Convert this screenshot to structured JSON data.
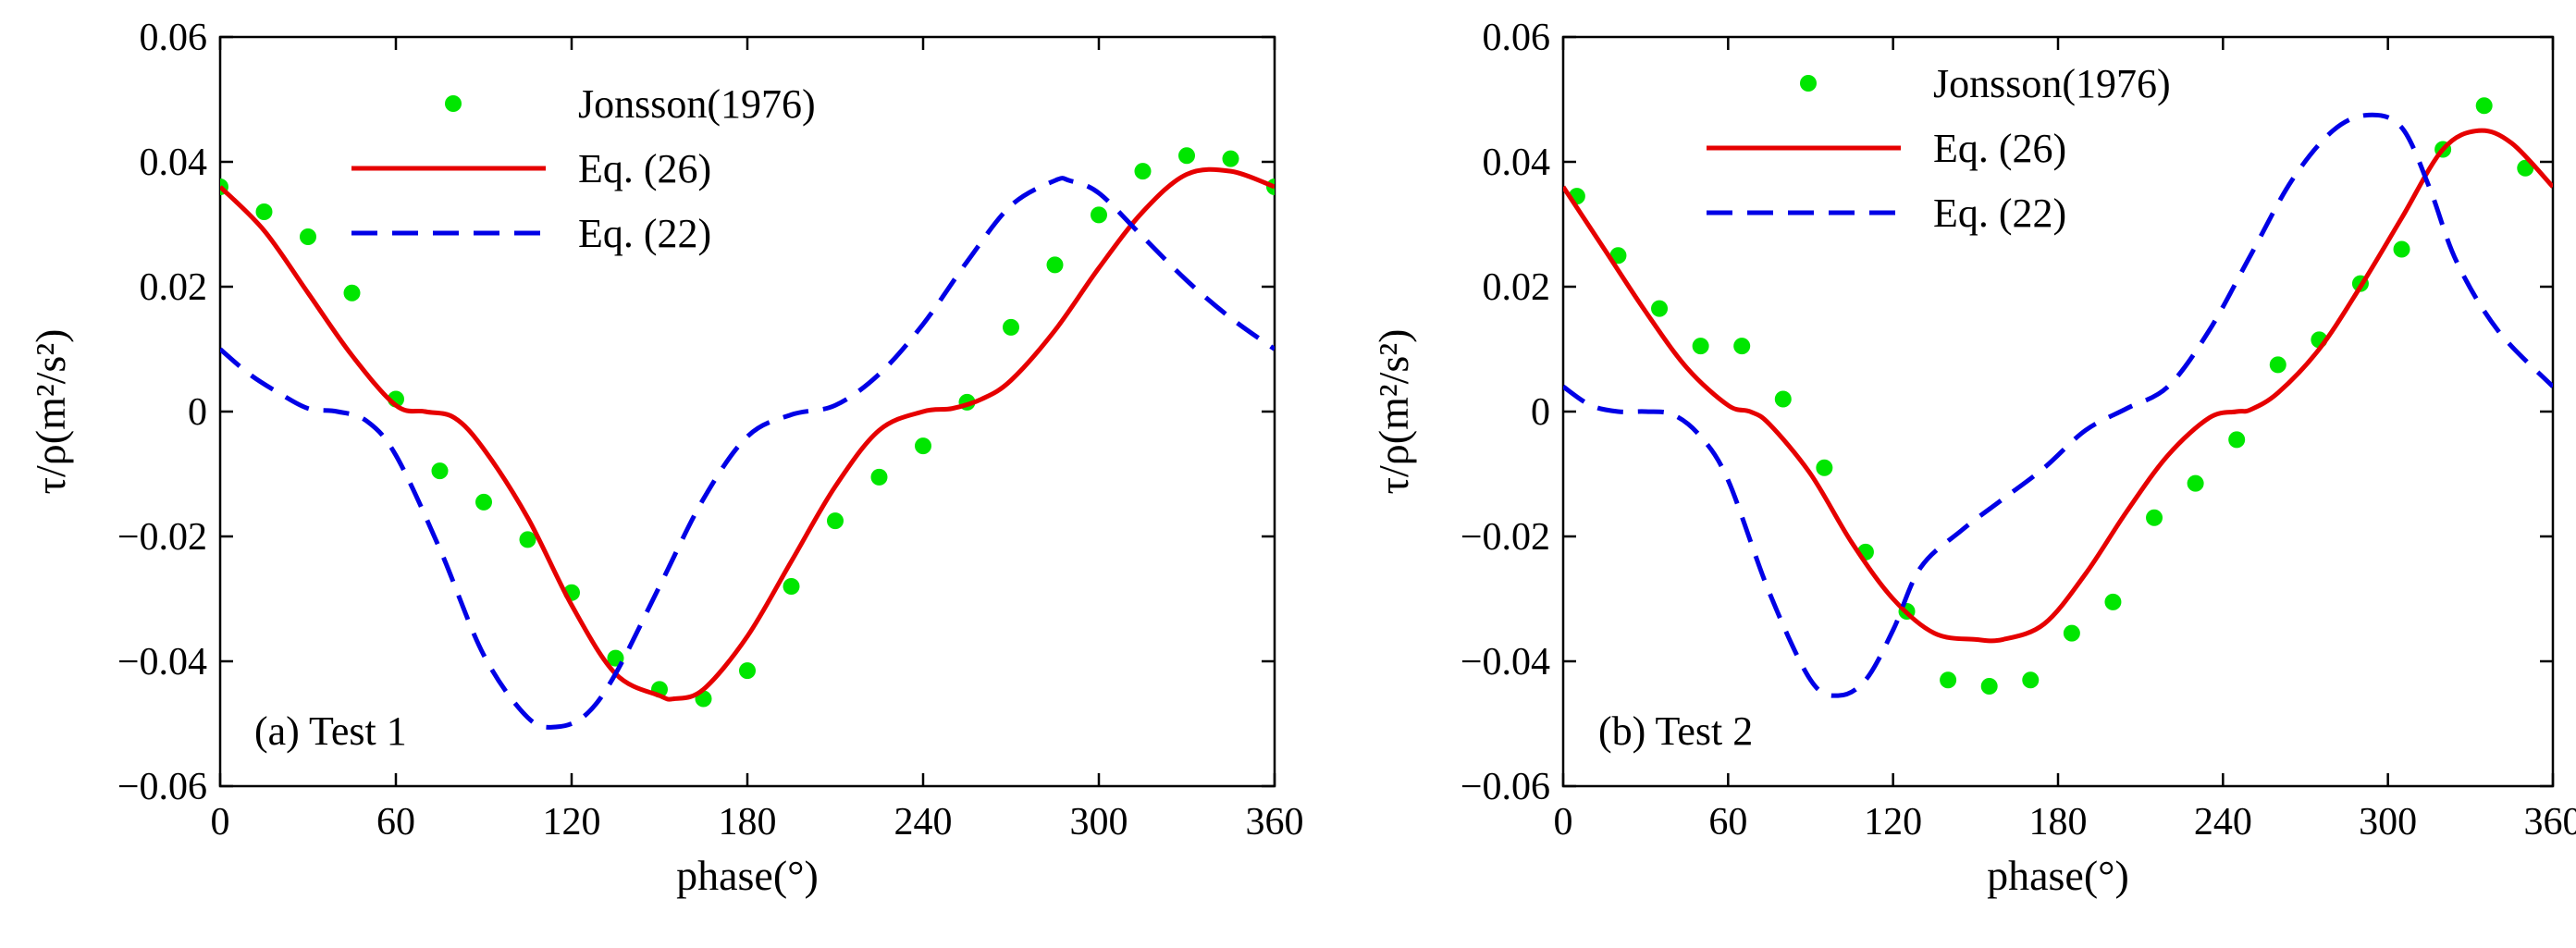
{
  "chart_data": [
    {
      "type": "line",
      "panel_label": "(a) Test 1",
      "xlabel": "phase(°)",
      "ylabel": "τ/ρ(m²/s²)",
      "xlim": [
        0,
        360
      ],
      "ylim": [
        -0.06,
        0.06
      ],
      "xticks": [
        0,
        60,
        120,
        180,
        240,
        300,
        360
      ],
      "yticks": [
        -0.06,
        -0.04,
        -0.02,
        0,
        0.02,
        0.04,
        0.06
      ],
      "xtick_labels": [
        "0",
        "60",
        "120",
        "180",
        "240",
        "300",
        "360"
      ],
      "ytick_labels": [
        "−0.06",
        "−0.04",
        "−0.02",
        "0",
        "0.02",
        "0.04",
        "0.06"
      ],
      "legend_position": "top-left",
      "grid": false,
      "series": [
        {
          "name": "Jonsson(1976)",
          "style": "markers",
          "color": "#00e600",
          "x": [
            0,
            15,
            30,
            45,
            60,
            75,
            90,
            105,
            120,
            135,
            150,
            165,
            180,
            195,
            210,
            225,
            240,
            255,
            270,
            285,
            300,
            315,
            330,
            345,
            360
          ],
          "y": [
            0.036,
            0.032,
            0.028,
            0.019,
            0.002,
            -0.0095,
            -0.0145,
            -0.0205,
            -0.029,
            -0.0395,
            -0.0445,
            -0.046,
            -0.0415,
            -0.028,
            -0.0175,
            -0.0105,
            -0.0055,
            0.0015,
            0.0135,
            0.0235,
            0.0315,
            0.0385,
            0.041,
            0.0405,
            0.036
          ]
        },
        {
          "name": "Eq. (26)",
          "style": "solid",
          "color": "#e60000",
          "x": [
            0,
            15,
            30,
            45,
            60,
            70,
            80,
            90,
            105,
            120,
            135,
            150,
            155,
            165,
            180,
            195,
            210,
            225,
            240,
            250,
            260,
            270,
            285,
            300,
            315,
            330,
            345,
            360
          ],
          "y": [
            0.036,
            0.029,
            0.019,
            0.009,
            0.001,
            0,
            -0.001,
            -0.006,
            -0.017,
            -0.031,
            -0.042,
            -0.0455,
            -0.046,
            -0.0445,
            -0.036,
            -0.024,
            -0.012,
            -0.003,
            0,
            0.0005,
            0.002,
            0.005,
            0.013,
            0.023,
            0.032,
            0.038,
            0.0385,
            0.036
          ]
        },
        {
          "name": "Eq. (22)",
          "style": "dashed",
          "color": "#0000e6",
          "x": [
            0,
            10,
            20,
            30,
            40,
            50,
            60,
            75,
            90,
            105,
            115,
            125,
            135,
            150,
            165,
            180,
            195,
            210,
            225,
            240,
            255,
            270,
            285,
            290,
            300,
            315,
            330,
            345,
            360
          ],
          "y": [
            0.01,
            0.006,
            0.003,
            0.0005,
            0,
            -0.0015,
            -0.007,
            -0.022,
            -0.039,
            -0.049,
            -0.0505,
            -0.0485,
            -0.042,
            -0.028,
            -0.014,
            -0.004,
            -0.0005,
            0.001,
            0.006,
            0.014,
            0.024,
            0.033,
            0.037,
            0.037,
            0.035,
            0.028,
            0.021,
            0.015,
            0.01
          ]
        }
      ]
    },
    {
      "type": "line",
      "panel_label": "(b) Test 2",
      "xlabel": "phase(°)",
      "ylabel": "τ/ρ(m²/s²)",
      "xlim": [
        0,
        360
      ],
      "ylim": [
        -0.06,
        0.06
      ],
      "xticks": [
        0,
        60,
        120,
        180,
        240,
        300,
        360
      ],
      "yticks": [
        -0.06,
        -0.04,
        -0.02,
        0,
        0.02,
        0.04,
        0.06
      ],
      "xtick_labels": [
        "0",
        "60",
        "120",
        "180",
        "240",
        "300",
        "360"
      ],
      "ytick_labels": [
        "−0.06",
        "−0.04",
        "−0.02",
        "0",
        "0.02",
        "0.04",
        "0.06"
      ],
      "legend_position": "top-left",
      "grid": false,
      "series": [
        {
          "name": "Jonsson(1976)",
          "style": "markers",
          "color": "#00e600",
          "x": [
            5,
            20,
            35,
            50,
            65,
            80,
            95,
            110,
            125,
            140,
            155,
            170,
            185,
            200,
            215,
            230,
            245,
            260,
            275,
            290,
            305,
            320,
            335,
            350
          ],
          "y": [
            0.0345,
            0.025,
            0.0165,
            0.0105,
            0.0105,
            0.002,
            -0.009,
            -0.0225,
            -0.032,
            -0.043,
            -0.044,
            -0.043,
            -0.0355,
            -0.0305,
            -0.017,
            -0.0115,
            -0.0045,
            0.0075,
            0.0115,
            0.0205,
            0.026,
            0.042,
            0.049,
            0.039
          ]
        },
        {
          "name": "Eq. (26)",
          "style": "solid",
          "color": "#e60000",
          "x": [
            0,
            15,
            30,
            45,
            60,
            68,
            75,
            90,
            105,
            120,
            135,
            150,
            160,
            175,
            190,
            205,
            220,
            235,
            245,
            250,
            260,
            275,
            290,
            305,
            320,
            333,
            345,
            360
          ],
          "y": [
            0.036,
            0.026,
            0.016,
            0.007,
            0.001,
            0,
            -0.002,
            -0.01,
            -0.021,
            -0.03,
            -0.0355,
            -0.0365,
            -0.0365,
            -0.034,
            -0.026,
            -0.016,
            -0.007,
            -0.001,
            0,
            0.0003,
            0.003,
            0.01,
            0.02,
            0.031,
            0.042,
            0.045,
            0.043,
            0.036
          ]
        },
        {
          "name": "Eq. (22)",
          "style": "dashed",
          "color": "#0000e6",
          "x": [
            0,
            10,
            20,
            30,
            40,
            50,
            60,
            75,
            90,
            100,
            110,
            120,
            130,
            145,
            160,
            175,
            190,
            205,
            220,
            235,
            250,
            265,
            280,
            293,
            305,
            315,
            325,
            340,
            360
          ],
          "y": [
            0.004,
            0.001,
            0,
            0,
            -0.0005,
            -0.004,
            -0.011,
            -0.029,
            -0.043,
            -0.0455,
            -0.043,
            -0.035,
            -0.025,
            -0.019,
            -0.014,
            -0.009,
            -0.003,
            0.0005,
            0.004,
            0.013,
            0.025,
            0.037,
            0.045,
            0.0475,
            0.0455,
            0.036,
            0.024,
            0.013,
            0.004
          ]
        }
      ]
    }
  ]
}
